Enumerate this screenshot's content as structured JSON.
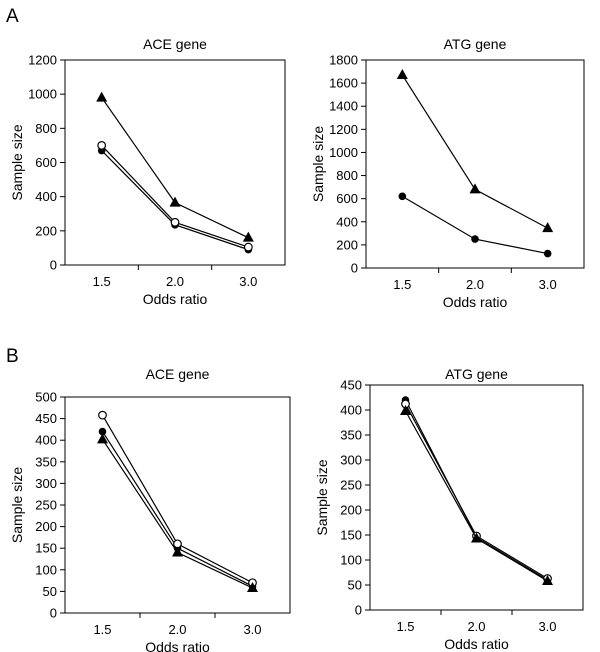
{
  "panels": [
    {
      "letter": "A"
    },
    {
      "letter": "B"
    }
  ],
  "chart_data": [
    {
      "type": "line",
      "panel": "A",
      "title": "ACE gene",
      "xlabel": "Odds ratio",
      "ylabel": "Sample size",
      "categories": [
        "1.5",
        "2.0",
        "3.0"
      ],
      "ylim": [
        0,
        1200
      ],
      "yticks": [
        0,
        200,
        400,
        600,
        800,
        1000,
        1200
      ],
      "grid": false,
      "legend": "none",
      "series": [
        {
          "marker": "circle-filled",
          "values": [
            670,
            235,
            90
          ]
        },
        {
          "marker": "circle-open",
          "values": [
            700,
            250,
            105
          ]
        },
        {
          "marker": "triangle-filled",
          "values": [
            980,
            365,
            160
          ]
        }
      ]
    },
    {
      "type": "line",
      "panel": "A",
      "title": "ATG gene",
      "xlabel": "Odds ratio",
      "ylabel": "Sample size",
      "categories": [
        "1.5",
        "2.0",
        "3.0"
      ],
      "ylim": [
        0,
        1800
      ],
      "yticks": [
        0,
        200,
        400,
        600,
        800,
        1000,
        1200,
        1400,
        1600,
        1800
      ],
      "grid": false,
      "legend": "none",
      "series": [
        {
          "marker": "circle-filled",
          "values": [
            620,
            250,
            125
          ]
        },
        {
          "marker": "triangle-filled",
          "values": [
            1670,
            680,
            345
          ]
        }
      ]
    },
    {
      "type": "line",
      "panel": "B",
      "title": "ACE gene",
      "xlabel": "Odds ratio",
      "ylabel": "Sample size",
      "categories": [
        "1.5",
        "2.0",
        "3.0"
      ],
      "ylim": [
        0,
        500
      ],
      "yticks": [
        0,
        50,
        100,
        150,
        200,
        250,
        300,
        350,
        400,
        450,
        500
      ],
      "grid": false,
      "legend": "none",
      "series": [
        {
          "marker": "circle-filled",
          "values": [
            420,
            150,
            62
          ]
        },
        {
          "marker": "circle-open",
          "values": [
            458,
            160,
            70
          ]
        },
        {
          "marker": "triangle-filled",
          "values": [
            402,
            140,
            58
          ]
        }
      ]
    },
    {
      "type": "line",
      "panel": "B",
      "title": "ATG gene",
      "xlabel": "Odds ratio",
      "ylabel": "Sample size",
      "categories": [
        "1.5",
        "2.0",
        "3.0"
      ],
      "ylim": [
        0,
        450
      ],
      "yticks": [
        0,
        50,
        100,
        150,
        200,
        250,
        300,
        350,
        400,
        450
      ],
      "grid": false,
      "legend": "none",
      "series": [
        {
          "marker": "circle-filled",
          "values": [
            420,
            145,
            60
          ]
        },
        {
          "marker": "circle-open",
          "values": [
            412,
            148,
            63
          ]
        },
        {
          "marker": "triangle-filled",
          "values": [
            398,
            143,
            58
          ]
        }
      ]
    }
  ]
}
